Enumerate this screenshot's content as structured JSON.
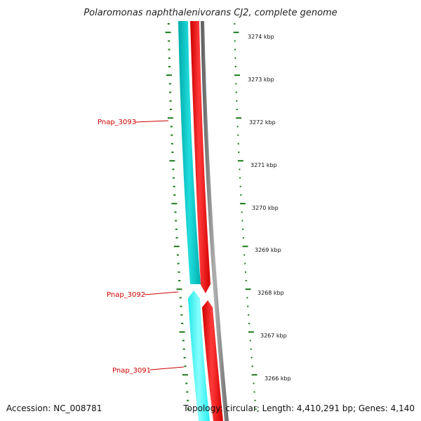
{
  "title": "Polaromonas naphthalenivorans CJ2, complete genome",
  "accession": "Accession: NC_008781",
  "summary": "Topology: circular; Length: 4,410,291 bp; Genes: 4,140",
  "colors": {
    "forward_cds": "#ff0000",
    "reverse_cds": "#00cccc",
    "reverse_cds_light": "#00ffff",
    "backbone": "#808080",
    "ticks": "#1a7a1a",
    "gene_label": "#cc0000"
  },
  "position_labels": [
    {
      "kbp": 3274,
      "text": "3274 kbp"
    },
    {
      "kbp": 3273,
      "text": "3273 kbp"
    },
    {
      "kbp": 3272,
      "text": "3272 kbp"
    },
    {
      "kbp": 3271,
      "text": "3271 kbp"
    },
    {
      "kbp": 3270,
      "text": "3270 kbp"
    },
    {
      "kbp": 3269,
      "text": "3269 kbp"
    },
    {
      "kbp": 3268,
      "text": "3268 kbp"
    },
    {
      "kbp": 3267,
      "text": "3267 kbp"
    },
    {
      "kbp": 3266,
      "text": "3266 kbp"
    }
  ],
  "gene_labels": [
    {
      "name": "Pnap_3093"
    },
    {
      "name": "Pnap_3092"
    },
    {
      "name": "Pnap_3091"
    }
  ]
}
